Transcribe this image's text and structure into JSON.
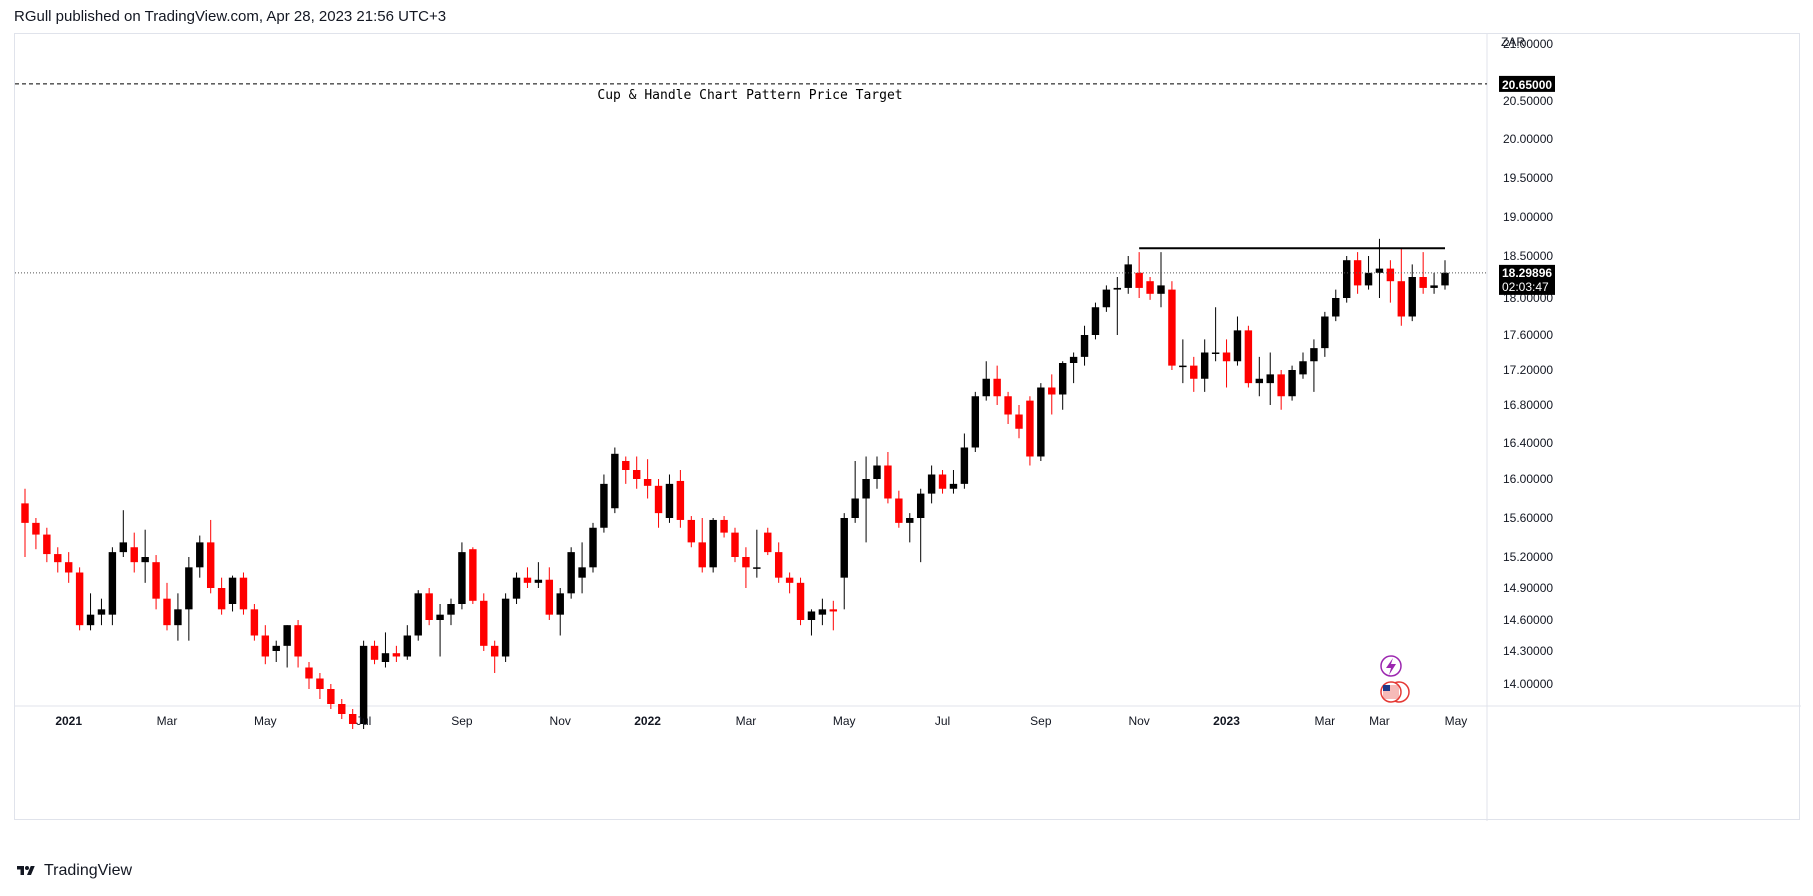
{
  "header": {
    "published": "RGull published on TradingView.com, Apr 28, 2023 21:56 UTC+3"
  },
  "footer": {
    "brand": "TradingView"
  },
  "colors": {
    "up": "#000000",
    "down": "#ff0000",
    "axis_text": "#131722",
    "grid": "#e0e3eb",
    "price_tag_bg": "#000000",
    "price_tag_text": "#ffffff"
  },
  "icons": [
    "lightning-icon",
    "us-flag-icon"
  ],
  "chart_data": {
    "type": "candlestick",
    "interval": "weekly",
    "currency": "ZAR",
    "y_axis_ticks": [
      "21.00000",
      "20.50000",
      "20.00000",
      "19.50000",
      "19.00000",
      "18.50000",
      "18.00000",
      "17.60000",
      "17.20000",
      "16.80000",
      "16.40000",
      "16.00000",
      "15.60000",
      "15.20000",
      "14.90000",
      "14.60000",
      "14.30000",
      "14.00000"
    ],
    "x_axis_ticks": [
      "2021",
      "Mar",
      "May",
      "Jul",
      "Sep",
      "Nov",
      "2022",
      "Mar",
      "May",
      "Jul",
      "Sep",
      "Nov",
      "2023",
      "Mar",
      "Mar",
      "May"
    ],
    "price_target": {
      "value": "20.65000",
      "label": "Cup & Handle Chart Pattern Price Target"
    },
    "resistance_level": 18.6,
    "last_price": {
      "value": "18.29896",
      "countdown": "02:03:47"
    },
    "candles": [
      {
        "o": 15.75,
        "h": 15.9,
        "l": 15.2,
        "c": 15.55
      },
      {
        "o": 15.55,
        "h": 15.6,
        "l": 15.28,
        "c": 15.43
      },
      {
        "o": 15.43,
        "h": 15.5,
        "l": 15.15,
        "c": 15.23
      },
      {
        "o": 15.23,
        "h": 15.3,
        "l": 15.05,
        "c": 15.15
      },
      {
        "o": 15.15,
        "h": 15.25,
        "l": 14.95,
        "c": 15.05
      },
      {
        "o": 15.05,
        "h": 15.1,
        "l": 14.5,
        "c": 14.55
      },
      {
        "o": 14.55,
        "h": 14.85,
        "l": 14.5,
        "c": 14.65
      },
      {
        "o": 14.65,
        "h": 14.8,
        "l": 14.55,
        "c": 14.7
      },
      {
        "o": 14.65,
        "h": 15.3,
        "l": 14.55,
        "c": 15.25
      },
      {
        "o": 15.25,
        "h": 15.68,
        "l": 15.2,
        "c": 15.35
      },
      {
        "o": 15.3,
        "h": 15.45,
        "l": 15.05,
        "c": 15.15
      },
      {
        "o": 15.15,
        "h": 15.48,
        "l": 14.95,
        "c": 15.2
      },
      {
        "o": 15.15,
        "h": 15.22,
        "l": 14.7,
        "c": 14.8
      },
      {
        "o": 14.8,
        "h": 14.95,
        "l": 14.5,
        "c": 14.55
      },
      {
        "o": 14.55,
        "h": 14.85,
        "l": 14.4,
        "c": 14.7
      },
      {
        "o": 14.7,
        "h": 15.2,
        "l": 14.4,
        "c": 15.1
      },
      {
        "o": 15.1,
        "h": 15.42,
        "l": 15.0,
        "c": 15.35
      },
      {
        "o": 15.35,
        "h": 15.58,
        "l": 14.85,
        "c": 14.9
      },
      {
        "o": 14.9,
        "h": 15.0,
        "l": 14.65,
        "c": 14.7
      },
      {
        "o": 14.75,
        "h": 15.02,
        "l": 14.68,
        "c": 15.0
      },
      {
        "o": 15.0,
        "h": 15.05,
        "l": 14.65,
        "c": 14.7
      },
      {
        "o": 14.7,
        "h": 14.75,
        "l": 14.4,
        "c": 14.45
      },
      {
        "o": 14.45,
        "h": 14.55,
        "l": 14.18,
        "c": 14.25
      },
      {
        "o": 14.3,
        "h": 14.4,
        "l": 14.2,
        "c": 14.35
      },
      {
        "o": 14.35,
        "h": 14.55,
        "l": 14.15,
        "c": 14.55
      },
      {
        "o": 14.55,
        "h": 14.6,
        "l": 14.15,
        "c": 14.25
      },
      {
        "o": 14.15,
        "h": 14.2,
        "l": 13.95,
        "c": 14.05
      },
      {
        "o": 14.05,
        "h": 14.1,
        "l": 13.85,
        "c": 13.95
      },
      {
        "o": 13.95,
        "h": 14.0,
        "l": 13.75,
        "c": 13.8
      },
      {
        "o": 13.8,
        "h": 13.85,
        "l": 13.65,
        "c": 13.7
      },
      {
        "o": 13.7,
        "h": 13.75,
        "l": 13.55,
        "c": 13.6
      },
      {
        "o": 13.6,
        "h": 14.4,
        "l": 13.55,
        "c": 14.35
      },
      {
        "o": 14.35,
        "h": 14.4,
        "l": 14.18,
        "c": 14.22
      },
      {
        "o": 14.2,
        "h": 14.48,
        "l": 14.15,
        "c": 14.28
      },
      {
        "o": 14.28,
        "h": 14.35,
        "l": 14.2,
        "c": 14.25
      },
      {
        "o": 14.25,
        "h": 14.55,
        "l": 14.22,
        "c": 14.45
      },
      {
        "o": 14.45,
        "h": 14.88,
        "l": 14.4,
        "c": 14.85
      },
      {
        "o": 14.85,
        "h": 14.9,
        "l": 14.55,
        "c": 14.6
      },
      {
        "o": 14.6,
        "h": 14.75,
        "l": 14.25,
        "c": 14.65
      },
      {
        "o": 14.65,
        "h": 14.8,
        "l": 14.55,
        "c": 14.75
      },
      {
        "o": 14.75,
        "h": 15.35,
        "l": 14.7,
        "c": 15.25
      },
      {
        "o": 15.28,
        "h": 15.3,
        "l": 14.75,
        "c": 14.78
      },
      {
        "o": 14.78,
        "h": 14.85,
        "l": 14.3,
        "c": 14.35
      },
      {
        "o": 14.35,
        "h": 14.4,
        "l": 14.1,
        "c": 14.25
      },
      {
        "o": 14.25,
        "h": 14.85,
        "l": 14.2,
        "c": 14.8
      },
      {
        "o": 14.8,
        "h": 15.05,
        "l": 14.75,
        "c": 15.0
      },
      {
        "o": 15.0,
        "h": 15.1,
        "l": 14.9,
        "c": 14.95
      },
      {
        "o": 14.95,
        "h": 15.15,
        "l": 14.9,
        "c": 14.98
      },
      {
        "o": 14.98,
        "h": 15.1,
        "l": 14.6,
        "c": 14.65
      },
      {
        "o": 14.65,
        "h": 14.9,
        "l": 14.45,
        "c": 14.85
      },
      {
        "o": 14.85,
        "h": 15.3,
        "l": 14.8,
        "c": 15.25
      },
      {
        "o": 15.0,
        "h": 15.35,
        "l": 14.85,
        "c": 15.1
      },
      {
        "o": 15.1,
        "h": 15.55,
        "l": 15.05,
        "c": 15.5
      },
      {
        "o": 15.5,
        "h": 16.05,
        "l": 15.45,
        "c": 15.95
      },
      {
        "o": 15.7,
        "h": 16.35,
        "l": 15.65,
        "c": 16.28
      },
      {
        "o": 16.2,
        "h": 16.25,
        "l": 15.95,
        "c": 16.1
      },
      {
        "o": 16.1,
        "h": 16.25,
        "l": 15.9,
        "c": 16.0
      },
      {
        "o": 16.0,
        "h": 16.22,
        "l": 15.8,
        "c": 15.93
      },
      {
        "o": 15.93,
        "h": 16.0,
        "l": 15.5,
        "c": 15.65
      },
      {
        "o": 15.6,
        "h": 16.05,
        "l": 15.55,
        "c": 15.95
      },
      {
        "o": 15.98,
        "h": 16.1,
        "l": 15.5,
        "c": 15.58
      },
      {
        "o": 15.58,
        "h": 15.62,
        "l": 15.3,
        "c": 15.35
      },
      {
        "o": 15.35,
        "h": 15.6,
        "l": 15.05,
        "c": 15.1
      },
      {
        "o": 15.1,
        "h": 15.6,
        "l": 15.05,
        "c": 15.58
      },
      {
        "o": 15.58,
        "h": 15.62,
        "l": 15.4,
        "c": 15.45
      },
      {
        "o": 15.45,
        "h": 15.5,
        "l": 15.15,
        "c": 15.2
      },
      {
        "o": 15.2,
        "h": 15.3,
        "l": 14.9,
        "c": 15.1
      },
      {
        "o": 15.1,
        "h": 15.48,
        "l": 15.0,
        "c": 15.1
      },
      {
        "o": 15.45,
        "h": 15.5,
        "l": 15.22,
        "c": 15.25
      },
      {
        "o": 15.25,
        "h": 15.35,
        "l": 14.95,
        "c": 15.0
      },
      {
        "o": 15.0,
        "h": 15.05,
        "l": 14.85,
        "c": 14.95
      },
      {
        "o": 14.95,
        "h": 15.0,
        "l": 14.55,
        "c": 14.6
      },
      {
        "o": 14.6,
        "h": 14.7,
        "l": 14.45,
        "c": 14.68
      },
      {
        "o": 14.65,
        "h": 14.8,
        "l": 14.55,
        "c": 14.7
      },
      {
        "o": 14.7,
        "h": 14.78,
        "l": 14.5,
        "c": 14.68
      },
      {
        "o": 15.0,
        "h": 15.65,
        "l": 14.7,
        "c": 15.6
      },
      {
        "o": 15.6,
        "h": 16.2,
        "l": 15.55,
        "c": 15.8
      },
      {
        "o": 15.8,
        "h": 16.25,
        "l": 15.35,
        "c": 16.0
      },
      {
        "o": 16.0,
        "h": 16.25,
        "l": 15.9,
        "c": 16.15
      },
      {
        "o": 16.15,
        "h": 16.3,
        "l": 15.75,
        "c": 15.8
      },
      {
        "o": 15.8,
        "h": 15.88,
        "l": 15.5,
        "c": 15.55
      },
      {
        "o": 15.55,
        "h": 15.65,
        "l": 15.35,
        "c": 15.6
      },
      {
        "o": 15.6,
        "h": 15.9,
        "l": 15.15,
        "c": 15.85
      },
      {
        "o": 15.85,
        "h": 16.15,
        "l": 15.75,
        "c": 16.05
      },
      {
        "o": 16.05,
        "h": 16.1,
        "l": 15.85,
        "c": 15.9
      },
      {
        "o": 15.9,
        "h": 16.1,
        "l": 15.85,
        "c": 15.95
      },
      {
        "o": 15.95,
        "h": 16.5,
        "l": 15.9,
        "c": 16.35
      },
      {
        "o": 16.35,
        "h": 16.95,
        "l": 16.3,
        "c": 16.9
      },
      {
        "o": 16.9,
        "h": 17.3,
        "l": 16.85,
        "c": 17.1
      },
      {
        "o": 17.1,
        "h": 17.25,
        "l": 16.8,
        "c": 16.9
      },
      {
        "o": 16.9,
        "h": 16.95,
        "l": 16.6,
        "c": 16.7
      },
      {
        "o": 16.7,
        "h": 16.8,
        "l": 16.45,
        "c": 16.55
      },
      {
        "o": 16.85,
        "h": 16.9,
        "l": 16.15,
        "c": 16.25
      },
      {
        "o": 16.25,
        "h": 17.05,
        "l": 16.2,
        "c": 17.0
      },
      {
        "o": 17.0,
        "h": 17.15,
        "l": 16.7,
        "c": 16.92
      },
      {
        "o": 16.92,
        "h": 17.3,
        "l": 16.75,
        "c": 17.28
      },
      {
        "o": 17.28,
        "h": 17.4,
        "l": 17.05,
        "c": 17.35
      },
      {
        "o": 17.35,
        "h": 17.7,
        "l": 17.25,
        "c": 17.6
      },
      {
        "o": 17.6,
        "h": 17.95,
        "l": 17.55,
        "c": 17.9
      },
      {
        "o": 17.9,
        "h": 18.15,
        "l": 17.85,
        "c": 18.1
      },
      {
        "o": 18.1,
        "h": 18.25,
        "l": 17.6,
        "c": 18.12
      },
      {
        "o": 18.12,
        "h": 18.5,
        "l": 18.05,
        "c": 18.4
      },
      {
        "o": 18.3,
        "h": 18.55,
        "l": 18.0,
        "c": 18.12
      },
      {
        "o": 18.2,
        "h": 18.25,
        "l": 17.98,
        "c": 18.05
      },
      {
        "o": 18.05,
        "h": 18.55,
        "l": 17.9,
        "c": 18.15
      },
      {
        "o": 18.1,
        "h": 18.2,
        "l": 17.2,
        "c": 17.25
      },
      {
        "o": 17.25,
        "h": 17.55,
        "l": 17.05,
        "c": 17.25
      },
      {
        "o": 17.25,
        "h": 17.35,
        "l": 16.95,
        "c": 17.1
      },
      {
        "o": 17.1,
        "h": 17.55,
        "l": 16.95,
        "c": 17.4
      },
      {
        "o": 17.4,
        "h": 17.9,
        "l": 17.3,
        "c": 17.4
      },
      {
        "o": 17.4,
        "h": 17.55,
        "l": 17.0,
        "c": 17.3
      },
      {
        "o": 17.3,
        "h": 17.8,
        "l": 17.25,
        "c": 17.65
      },
      {
        "o": 17.65,
        "h": 17.7,
        "l": 17.0,
        "c": 17.05
      },
      {
        "o": 17.05,
        "h": 17.35,
        "l": 16.9,
        "c": 17.1
      },
      {
        "o": 17.05,
        "h": 17.4,
        "l": 16.8,
        "c": 17.15
      },
      {
        "o": 17.15,
        "h": 17.2,
        "l": 16.75,
        "c": 16.9
      },
      {
        "o": 16.9,
        "h": 17.25,
        "l": 16.85,
        "c": 17.2
      },
      {
        "o": 17.15,
        "h": 17.4,
        "l": 17.1,
        "c": 17.3
      },
      {
        "o": 17.3,
        "h": 17.55,
        "l": 16.95,
        "c": 17.45
      },
      {
        "o": 17.45,
        "h": 17.85,
        "l": 17.35,
        "c": 17.8
      },
      {
        "o": 17.8,
        "h": 18.1,
        "l": 17.75,
        "c": 18.0
      },
      {
        "o": 18.0,
        "h": 18.5,
        "l": 17.95,
        "c": 18.45
      },
      {
        "o": 18.45,
        "h": 18.55,
        "l": 18.05,
        "c": 18.15
      },
      {
        "o": 18.15,
        "h": 18.5,
        "l": 18.1,
        "c": 18.3
      },
      {
        "o": 18.3,
        "h": 18.72,
        "l": 18.0,
        "c": 18.35
      },
      {
        "o": 18.35,
        "h": 18.45,
        "l": 17.95,
        "c": 18.2
      },
      {
        "o": 18.2,
        "h": 18.6,
        "l": 17.7,
        "c": 17.8
      },
      {
        "o": 17.8,
        "h": 18.4,
        "l": 17.75,
        "c": 18.25
      },
      {
        "o": 18.25,
        "h": 18.55,
        "l": 18.05,
        "c": 18.12
      },
      {
        "o": 18.12,
        "h": 18.3,
        "l": 18.05,
        "c": 18.15
      },
      {
        "o": 18.15,
        "h": 18.45,
        "l": 18.1,
        "c": 18.3
      }
    ]
  }
}
